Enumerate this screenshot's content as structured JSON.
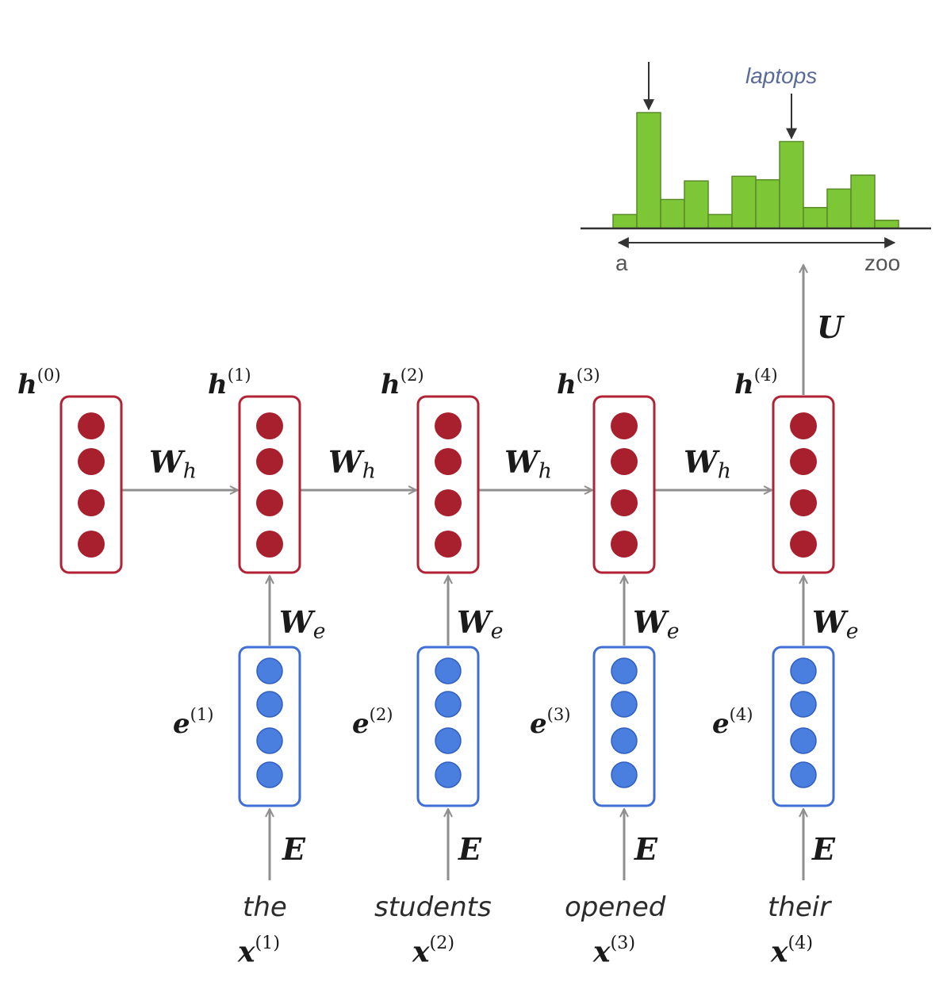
{
  "colors": {
    "hidden_box": "#b22234",
    "hidden_dot": "#a81f2e",
    "embed_box": "#3f6fd4",
    "embed_dot": "#4a7fe0",
    "arrow": "#8f8f8f",
    "bar_fill": "#7dc737",
    "bar_stroke": "#5a8a2a",
    "text": "#1a1a1a"
  },
  "hidden": [
    {
      "label": "h",
      "sup": "(0)"
    },
    {
      "label": "h",
      "sup": "(1)"
    },
    {
      "label": "h",
      "sup": "(2)"
    },
    {
      "label": "h",
      "sup": "(3)"
    },
    {
      "label": "h",
      "sup": "(4)"
    }
  ],
  "embeddings": [
    {
      "label": "e",
      "sup": "(1)"
    },
    {
      "label": "e",
      "sup": "(2)"
    },
    {
      "label": "e",
      "sup": "(3)"
    },
    {
      "label": "e",
      "sup": "(4)"
    }
  ],
  "inputs": [
    {
      "word": "the",
      "label": "x",
      "sup": "(1)"
    },
    {
      "word": "students",
      "label": "x",
      "sup": "(2)"
    },
    {
      "word": "opened",
      "label": "x",
      "sup": "(3)"
    },
    {
      "word": "their",
      "label": "x",
      "sup": "(4)"
    }
  ],
  "weights": {
    "Wh": {
      "base": "W",
      "sub": "h"
    },
    "We": {
      "base": "W",
      "sub": "e"
    },
    "E": "E",
    "U": "U"
  },
  "output_distribution": {
    "values": [
      0.12,
      1.0,
      0.25,
      0.41,
      0.12,
      0.45,
      0.42,
      0.75,
      0.18,
      0.34,
      0.46,
      0.07
    ],
    "highlight_word": "laptops",
    "axis_start": "a",
    "axis_end": "zoo"
  }
}
